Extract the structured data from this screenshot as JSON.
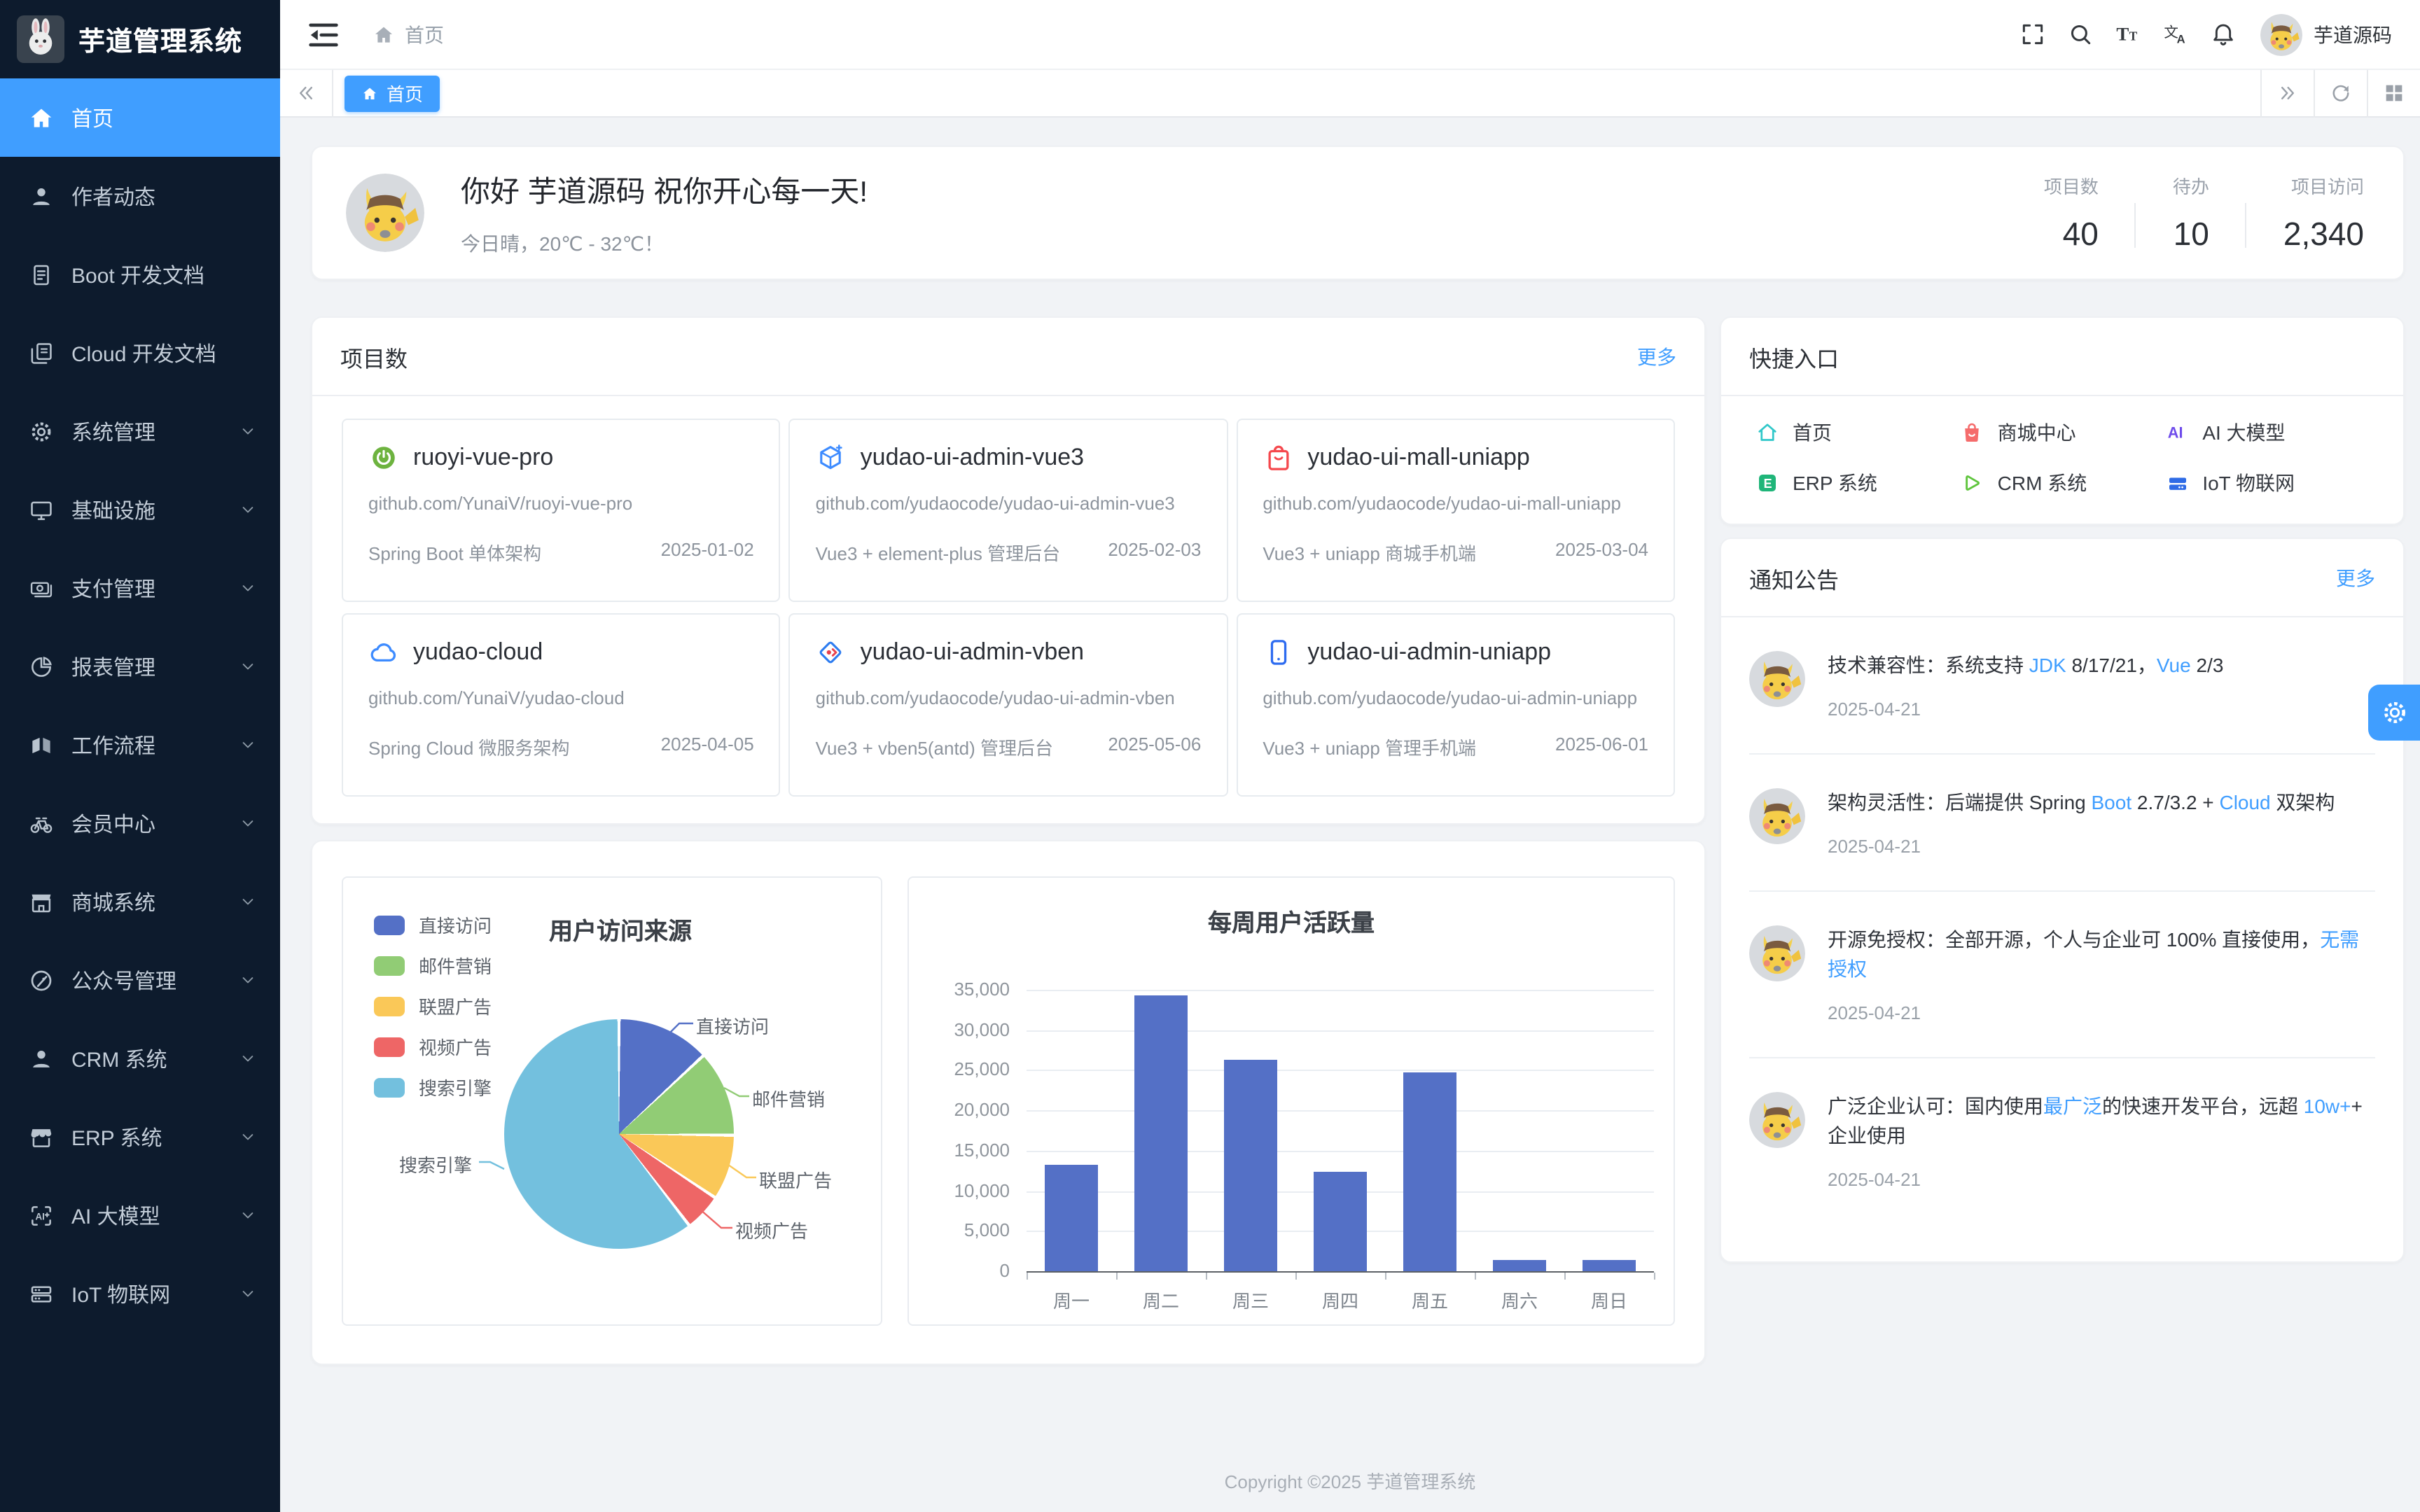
{
  "app": {
    "title": "芋道管理系统"
  },
  "colors": {
    "primary": "#409EFF",
    "sidebar_bg": "#0d1b2d",
    "content_bg": "#f1f3f6",
    "link": "#409EFF",
    "text_secondary": "#8d949d"
  },
  "topbar": {
    "breadcrumb": {
      "home": "首页"
    },
    "user": "芋道源码",
    "icons": [
      "collapse-menu-icon",
      "fullscreen-icon",
      "search-icon",
      "font-size-icon",
      "language-icon",
      "bell-icon"
    ]
  },
  "tabbar": {
    "tabs": [
      {
        "label": "首页",
        "icon": "home-icon",
        "active": true
      }
    ],
    "controls": [
      "scroll-left-icon",
      "scroll-right-icon",
      "refresh-icon",
      "layout-grid-icon"
    ]
  },
  "sidebar": {
    "items": [
      {
        "label": "首页",
        "icon": "home-icon",
        "active": true,
        "chevron": false
      },
      {
        "label": "作者动态",
        "icon": "user-icon",
        "chevron": false
      },
      {
        "label": "Boot 开发文档",
        "icon": "document-icon",
        "chevron": false
      },
      {
        "label": "Cloud 开发文档",
        "icon": "copy-document-icon",
        "chevron": false
      },
      {
        "label": "系统管理",
        "icon": "gear-icon",
        "chevron": true
      },
      {
        "label": "基础设施",
        "icon": "monitor-icon",
        "chevron": true
      },
      {
        "label": "支付管理",
        "icon": "money-icon",
        "chevron": true
      },
      {
        "label": "报表管理",
        "icon": "pie-chart-icon",
        "chevron": true
      },
      {
        "label": "工作流程",
        "icon": "workflow-icon",
        "chevron": true
      },
      {
        "label": "会员中心",
        "icon": "bicycle-icon",
        "chevron": true
      },
      {
        "label": "商城系统",
        "icon": "shop-icon",
        "chevron": true
      },
      {
        "label": "公众号管理",
        "icon": "official-account-icon",
        "chevron": true
      },
      {
        "label": "CRM 系统",
        "icon": "user-icon",
        "chevron": true
      },
      {
        "label": "ERP 系统",
        "icon": "storefront-icon",
        "chevron": true
      },
      {
        "label": "AI 大模型",
        "icon": "ai-icon",
        "chevron": true
      },
      {
        "label": "IoT 物联网",
        "icon": "server-icon",
        "chevron": true
      }
    ]
  },
  "greeting": {
    "title": "你好 芋道源码 祝你开心每一天!",
    "weather": "今日晴，20℃ - 32℃！",
    "stats": [
      {
        "label": "项目数",
        "value": "40"
      },
      {
        "label": "待办",
        "value": "10"
      },
      {
        "label": "项目访问",
        "value": "2,340"
      }
    ]
  },
  "projects": {
    "title": "项目数",
    "more": "更多",
    "cards": [
      {
        "icon": "spring-icon",
        "name": "ruoyi-vue-pro",
        "url": "github.com/YunaiV/ruoyi-vue-pro",
        "desc": "Spring Boot 单体架构",
        "date": "2025-01-02"
      },
      {
        "icon": "cube-icon",
        "name": "yudao-ui-admin-vue3",
        "url": "github.com/yudaocode/yudao-ui-admin-vue3",
        "desc": "Vue3 + element-plus 管理后台",
        "date": "2025-02-03"
      },
      {
        "icon": "bag-icon",
        "name": "yudao-ui-mall-uniapp",
        "url": "github.com/yudaocode/yudao-ui-mall-uniapp",
        "desc": "Vue3 + uniapp 商城手机端",
        "date": "2025-03-04"
      },
      {
        "icon": "cloud-icon",
        "name": "yudao-cloud",
        "url": "github.com/YunaiV/yudao-cloud",
        "desc": "Spring Cloud 微服务架构",
        "date": "2025-04-05"
      },
      {
        "icon": "diamond-icon",
        "name": "yudao-ui-admin-vben",
        "url": "github.com/yudaocode/yudao-ui-admin-vben",
        "desc": "Vue3 + vben5(antd) 管理后台",
        "date": "2025-05-06"
      },
      {
        "icon": "phone-icon",
        "name": "yudao-ui-admin-uniapp",
        "url": "github.com/yudaocode/yudao-ui-admin-uniapp",
        "desc": "Vue3 + uniapp 管理手机端",
        "date": "2025-06-01"
      }
    ]
  },
  "quick": {
    "title": "快捷入口",
    "items": [
      {
        "label": "首页",
        "icon": "home-outline-icon",
        "color": "#2FC7C9"
      },
      {
        "label": "商城中心",
        "icon": "mall-icon",
        "color": "#F56C6C"
      },
      {
        "label": "AI 大模型",
        "icon": "ai-text-icon",
        "color": "#6E4BEB"
      },
      {
        "label": "ERP 系统",
        "icon": "erp-icon",
        "color": "#1FB579"
      },
      {
        "label": "CRM 系统",
        "icon": "crm-icon",
        "color": "#5FC53D"
      },
      {
        "label": "IoT 物联网",
        "icon": "iot-icon",
        "color": "#2E6BE6"
      }
    ]
  },
  "notices": {
    "title": "通知公告",
    "more": "更多",
    "items": [
      {
        "segments": [
          {
            "t": "技术兼容性：系统支持 "
          },
          {
            "t": "JDK",
            "hl": true
          },
          {
            "t": " 8/17/21，"
          },
          {
            "t": "Vue",
            "hl": true
          },
          {
            "t": " 2/3"
          }
        ],
        "date": "2025-04-21"
      },
      {
        "segments": [
          {
            "t": "架构灵活性：后端提供 Spring "
          },
          {
            "t": "Boot",
            "hl": true
          },
          {
            "t": " 2.7/3.2 + "
          },
          {
            "t": "Cloud",
            "hl": true
          },
          {
            "t": " 双架构"
          }
        ],
        "date": "2025-04-21"
      },
      {
        "segments": [
          {
            "t": "开源免授权：全部开源，个人与企业可 100% 直接使用，"
          },
          {
            "t": "无需授权",
            "hl": true
          }
        ],
        "date": "2025-04-21"
      },
      {
        "segments": [
          {
            "t": "广泛企业认可：国内使用"
          },
          {
            "t": "最广泛",
            "hl": true
          },
          {
            "t": "的快速开发平台，远超 "
          },
          {
            "t": "10w+",
            "hl": true
          },
          {
            "t": "+ 企业使用"
          }
        ],
        "date": "2025-04-21"
      }
    ]
  },
  "footer": {
    "text": "Copyright ©2025 芋道管理系统"
  },
  "chart_data": [
    {
      "type": "pie",
      "title": "用户访问来源",
      "labels": [
        "直接访问",
        "邮件营销",
        "联盟广告",
        "视频广告",
        "搜索引擎"
      ],
      "values": [
        335,
        310,
        234,
        135,
        1548
      ],
      "percents": [
        13.1,
        12.1,
        9.1,
        5.3,
        60.4
      ],
      "colors": [
        "#5470C6",
        "#91CC75",
        "#FAC858",
        "#EE6666",
        "#73C0DE"
      ],
      "legend_position": "top-left",
      "label_lines": true
    },
    {
      "type": "bar",
      "title": "每周用户活跃量",
      "categories": [
        "周一",
        "周二",
        "周三",
        "周四",
        "周五",
        "周六",
        "周日"
      ],
      "values": [
        13300,
        34300,
        26300,
        12400,
        24700,
        1400,
        1400
      ],
      "ylim": [
        0,
        35000
      ],
      "ytick_step": 5000,
      "bar_color": "#5470C6",
      "grid": true,
      "legend_position": "none"
    }
  ]
}
